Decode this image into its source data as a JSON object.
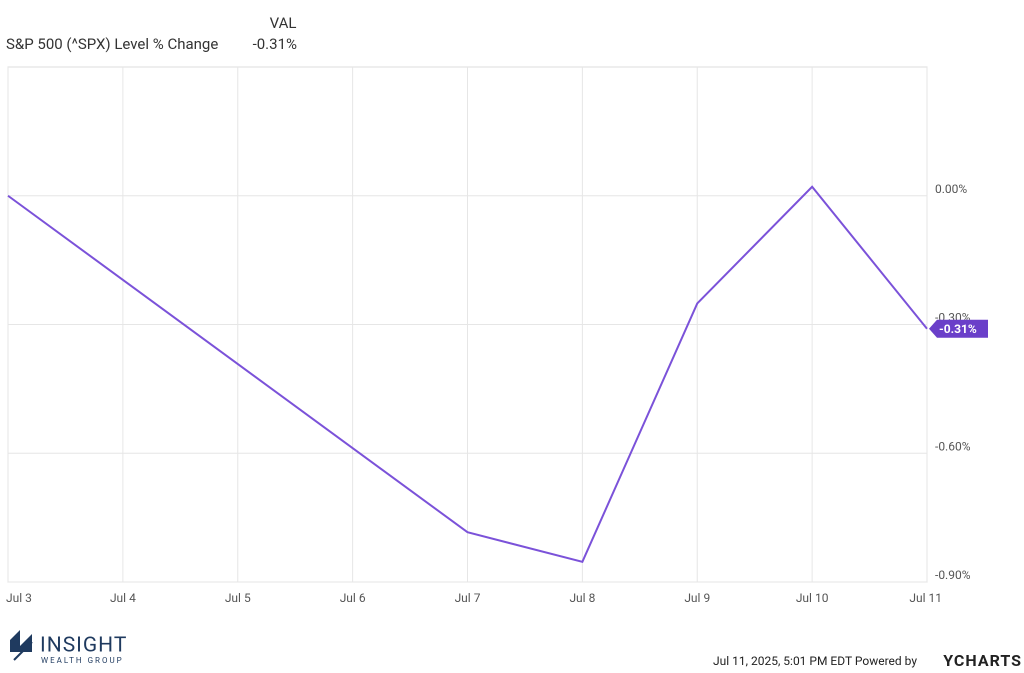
{
  "chart_data": {
    "type": "line",
    "header": "VAL",
    "x": [
      3,
      7,
      8,
      9,
      10,
      11
    ],
    "series": [
      {
        "name": "S&P 500 (^SPX) Level % Change",
        "color": "#7b52d9",
        "values": [
          0,
          -0.784,
          -0.853,
          -0.251,
          0.021,
          -0.31
        ],
        "value_labels": [
          null,
          null,
          null,
          null,
          null,
          "-0.31%"
        ]
      }
    ],
    "xlim": [
      3,
      11
    ],
    "xticks": [
      {
        "value": 3,
        "label": "Jul 3"
      },
      {
        "value": 4,
        "label": "Jul 4"
      },
      {
        "value": 5,
        "label": "Jul 5"
      },
      {
        "value": 6,
        "label": "Jul 6"
      },
      {
        "value": 7,
        "label": "Jul 7"
      },
      {
        "value": 8,
        "label": "Jul 8"
      },
      {
        "value": 9,
        "label": "Jul 9"
      },
      {
        "value": 10,
        "label": "Jul 10"
      },
      {
        "value": 11,
        "label": "Jul 11"
      }
    ],
    "ylim": [
      -0.9,
      0.3
    ],
    "yticks": [
      {
        "value": 0,
        "label": "0.00%"
      },
      {
        "value": -0.3,
        "label": "-0.30%"
      },
      {
        "value": -0.6,
        "label": "-0.60%"
      },
      {
        "value": -0.9,
        "label": "-0.90%"
      }
    ],
    "grid": true
  },
  "footer": {
    "logo_main": "INSIGHT",
    "logo_sub": "WEALTH GROUP",
    "timestamp": "Jul 11, 2025, 5:01 PM EDT Powered by",
    "brand": "YCHARTS"
  }
}
